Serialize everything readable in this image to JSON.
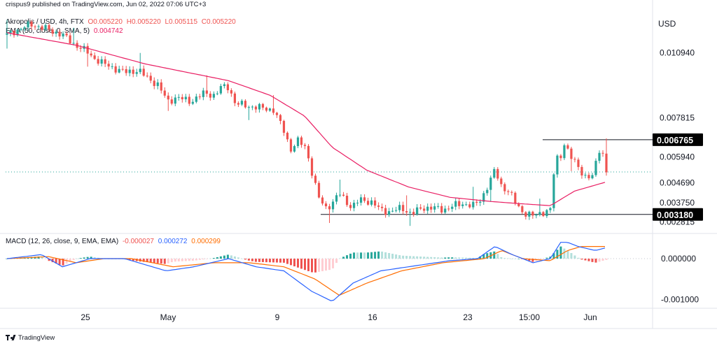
{
  "header": {
    "published": "crispus9 published on TradingView.com, Jun 02, 2022 07:06 UTC+3",
    "symbol": "Akropolis / USD, 4h, FTX",
    "o": "O0.005220",
    "h": "H0.005220",
    "l": "L0.005115",
    "c": "C0.005220",
    "ema_label": "EMA (50, close, 0, SMA, 5)",
    "ema_value": "0.004742",
    "macd_label": "MACD (12, 26, close, 9, EMA, EMA)",
    "macd_hist": "-0.000027",
    "macd_line": "0.000272",
    "macd_signal": "0.000299"
  },
  "footer": {
    "brand": "TradingView"
  },
  "chart_data": {
    "type": "candlestick",
    "title": "Akropolis / USD, 4h, FTX",
    "currency_label": "USD",
    "price_ticks": [
      "0.010940",
      "0.007815",
      "0.005940",
      "0.004690",
      "0.003750",
      "0.002815"
    ],
    "price_ylim": [
      0.0024,
      0.0128
    ],
    "highlighted_levels": [
      {
        "label": "0.006765",
        "value": 0.006765
      },
      {
        "label": "0.003180",
        "value": 0.00318
      }
    ],
    "last_price": 0.00522,
    "x_ticks": [
      "25",
      "May",
      "9",
      "16",
      "23",
      "15:00",
      "Jun"
    ],
    "price_keypoints": [
      [
        0,
        0.0118
      ],
      [
        20,
        0.0121
      ],
      [
        35,
        0.0123
      ],
      [
        55,
        0.0121
      ],
      [
        80,
        0.0118
      ],
      [
        95,
        0.0114
      ],
      [
        115,
        0.011
      ],
      [
        125,
        0.0107
      ],
      [
        140,
        0.0104
      ],
      [
        155,
        0.0102
      ],
      [
        170,
        0.01
      ],
      [
        190,
        0.0101
      ],
      [
        200,
        0.0098
      ],
      [
        218,
        0.0094
      ],
      [
        232,
        0.0086
      ],
      [
        245,
        0.0088
      ],
      [
        265,
        0.0086
      ],
      [
        285,
        0.009
      ],
      [
        300,
        0.0089
      ],
      [
        310,
        0.0093
      ],
      [
        320,
        0.0093
      ],
      [
        330,
        0.0085
      ],
      [
        345,
        0.0084
      ],
      [
        365,
        0.0083
      ],
      [
        385,
        0.0082
      ],
      [
        400,
        0.0072
      ],
      [
        410,
        0.0063
      ],
      [
        420,
        0.0067
      ],
      [
        432,
        0.0064
      ],
      [
        442,
        0.005
      ],
      [
        450,
        0.004
      ],
      [
        460,
        0.0035
      ],
      [
        470,
        0.0037
      ],
      [
        480,
        0.0042
      ],
      [
        488,
        0.0039
      ],
      [
        498,
        0.0035
      ],
      [
        510,
        0.0039
      ],
      [
        525,
        0.0038
      ],
      [
        540,
        0.0034
      ],
      [
        555,
        0.0033
      ],
      [
        570,
        0.0035
      ],
      [
        585,
        0.0032
      ],
      [
        600,
        0.0035
      ],
      [
        615,
        0.0035
      ],
      [
        630,
        0.0034
      ],
      [
        645,
        0.0036
      ],
      [
        660,
        0.0037
      ],
      [
        675,
        0.0036
      ],
      [
        685,
        0.0039
      ],
      [
        695,
        0.0046
      ],
      [
        705,
        0.0053
      ],
      [
        715,
        0.0045
      ],
      [
        725,
        0.0043
      ],
      [
        735,
        0.0037
      ],
      [
        745,
        0.0033
      ],
      [
        760,
        0.0031
      ],
      [
        775,
        0.0033
      ],
      [
        785,
        0.0034
      ],
      [
        792,
        0.0058
      ],
      [
        800,
        0.006
      ],
      [
        805,
        0.0066
      ],
      [
        815,
        0.0059
      ],
      [
        825,
        0.0055
      ],
      [
        835,
        0.005
      ],
      [
        845,
        0.0049
      ],
      [
        852,
        0.0058
      ],
      [
        858,
        0.0066
      ],
      [
        866,
        0.0052
      ]
    ],
    "ema_keypoints": [
      [
        0,
        0.0119
      ],
      [
        100,
        0.0113
      ],
      [
        200,
        0.0104
      ],
      [
        320,
        0.0096
      ],
      [
        380,
        0.0089
      ],
      [
        430,
        0.0079
      ],
      [
        470,
        0.0064
      ],
      [
        520,
        0.0053
      ],
      [
        580,
        0.0045
      ],
      [
        640,
        0.004
      ],
      [
        700,
        0.0038
      ],
      [
        740,
        0.0037
      ],
      [
        785,
        0.0036
      ],
      [
        820,
        0.0043
      ],
      [
        866,
        0.00474
      ]
    ],
    "macd_ticks": [
      "0.000000",
      "-0.001000"
    ],
    "macd_ylim": [
      -0.00115,
      0.00055
    ],
    "macd_line_keypoints": [
      [
        0,
        0.0
      ],
      [
        50,
        0.0001
      ],
      [
        80,
        -0.0002
      ],
      [
        120,
        0.0
      ],
      [
        170,
        0.0
      ],
      [
        230,
        -0.0003
      ],
      [
        270,
        -0.0002
      ],
      [
        320,
        0.0
      ],
      [
        360,
        -0.0002
      ],
      [
        400,
        -0.0003
      ],
      [
        440,
        -0.0008
      ],
      [
        470,
        -0.00105
      ],
      [
        500,
        -0.0006
      ],
      [
        540,
        -0.0003
      ],
      [
        580,
        -0.0002
      ],
      [
        640,
        -5e-05
      ],
      [
        680,
        0.0
      ],
      [
        705,
        0.0003
      ],
      [
        730,
        0.0001
      ],
      [
        760,
        -0.0001
      ],
      [
        785,
        0.0
      ],
      [
        800,
        0.0004
      ],
      [
        810,
        0.0004
      ],
      [
        825,
        0.0003
      ],
      [
        850,
        0.0002
      ],
      [
        866,
        0.00027
      ]
    ],
    "macd_signal_keypoints": [
      [
        0,
        0.0
      ],
      [
        60,
        5e-05
      ],
      [
        100,
        -0.0001
      ],
      [
        140,
        0.0
      ],
      [
        180,
        0.0
      ],
      [
        240,
        -0.0002
      ],
      [
        300,
        -0.0001
      ],
      [
        350,
        -0.0001
      ],
      [
        400,
        -0.0002
      ],
      [
        445,
        -0.0005
      ],
      [
        480,
        -0.0009
      ],
      [
        520,
        -0.0006
      ],
      [
        570,
        -0.0003
      ],
      [
        630,
        -0.0001
      ],
      [
        690,
        0.0
      ],
      [
        715,
        0.0002
      ],
      [
        745,
        0.0
      ],
      [
        785,
        -5e-05
      ],
      [
        810,
        0.0002
      ],
      [
        830,
        0.0003
      ],
      [
        850,
        0.0003
      ],
      [
        866,
        0.0003
      ]
    ],
    "colors": {
      "up": "#26a69a",
      "down": "#ef5350",
      "ema": "#e91e63",
      "macd_line": "#2962ff",
      "signal_line": "#ff6d00",
      "hist_pos_strong": "#26a69a",
      "hist_pos_weak": "#b2dfdb",
      "hist_neg_strong": "#ef5350",
      "hist_neg_weak": "#ffcdd2",
      "level_label_bg": "#000000"
    }
  }
}
